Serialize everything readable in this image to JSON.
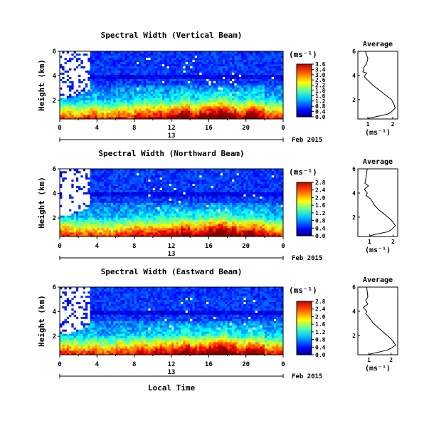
{
  "chart_data": [
    {
      "type": "heatmap",
      "title": "Spectral Width (Vertical Beam)",
      "ylabel": "Height (km)",
      "yticks": [
        "6",
        "4",
        "2"
      ],
      "ylim": [
        0.5,
        6
      ],
      "xticks": [
        "0",
        "4",
        "8",
        "12",
        "16",
        "20",
        "0"
      ],
      "xlim": [
        0,
        24
      ],
      "date_label": "13",
      "month_label": "Feb 2015",
      "colorbar_unit": "(ms⁻¹)",
      "colorbar_ticks": [
        "3.6",
        "3.4",
        "3.0",
        "2.6",
        "2.2",
        "1.8",
        "1.6",
        "1.2",
        "0.8",
        "0.4",
        "0.0"
      ],
      "intensity_profile": [
        0.35,
        0.3,
        0.3,
        0.45,
        0.3,
        0.28,
        0.4,
        0.35,
        0.5,
        0.55,
        0.6,
        0.5,
        0.7,
        0.9,
        0.6,
        0.75,
        0.9,
        1.0,
        0.75,
        0.55,
        0.85,
        0.7,
        0.4,
        0.45
      ],
      "average_profile": {
        "title": "Average",
        "xlabel": "(ms⁻¹)",
        "xticks": [
          "1",
          "2"
        ],
        "yticks": [
          "6",
          "4",
          "2"
        ],
        "xlim": [
          0.6,
          2.2
        ],
        "ylim": [
          0.4,
          6
        ],
        "points": [
          [
            0.9,
            6.0
          ],
          [
            1.0,
            5.4
          ],
          [
            0.95,
            5.0
          ],
          [
            0.85,
            4.7
          ],
          [
            0.8,
            4.3
          ],
          [
            0.95,
            4.2
          ],
          [
            0.85,
            3.9
          ],
          [
            1.0,
            3.6
          ],
          [
            1.2,
            3.2
          ],
          [
            1.45,
            2.8
          ],
          [
            1.7,
            2.4
          ],
          [
            1.95,
            2.0
          ],
          [
            2.05,
            1.6
          ],
          [
            2.1,
            1.3
          ],
          [
            1.95,
            1.0
          ],
          [
            1.8,
            0.8
          ],
          [
            1.35,
            0.6
          ],
          [
            1.0,
            0.45
          ]
        ]
      }
    },
    {
      "type": "heatmap",
      "title": "Spectral Width (Northward Beam)",
      "ylabel": "Height (km)",
      "yticks": [
        "6",
        "4",
        "2"
      ],
      "ylim": [
        0.5,
        6
      ],
      "xticks": [
        "0",
        "4",
        "8",
        "12",
        "16",
        "20",
        "0"
      ],
      "xlim": [
        0,
        24
      ],
      "date_label": "13",
      "month_label": "Feb 2015",
      "colorbar_unit": "(ms⁻¹)",
      "colorbar_ticks": [
        "2.8",
        "2.4",
        "2.0",
        "1.6",
        "1.2",
        "0.8",
        "0.4",
        "0.0"
      ],
      "intensity_profile": [
        0.45,
        0.35,
        0.3,
        0.4,
        0.3,
        0.28,
        0.35,
        0.45,
        0.55,
        0.5,
        0.55,
        0.6,
        0.65,
        0.75,
        0.6,
        0.7,
        0.85,
        1.0,
        0.8,
        0.6,
        0.75,
        0.65,
        0.45,
        0.4
      ],
      "average_profile": {
        "title": "Average",
        "xlabel": "(ms⁻¹)",
        "xticks": [
          "1",
          "2"
        ],
        "yticks": [
          "6",
          "4",
          "2"
        ],
        "xlim": [
          0.5,
          2.2
        ],
        "ylim": [
          0.4,
          6
        ],
        "points": [
          [
            0.9,
            6.0
          ],
          [
            0.85,
            5.3
          ],
          [
            0.8,
            4.8
          ],
          [
            0.95,
            4.6
          ],
          [
            0.78,
            4.3
          ],
          [
            0.9,
            4.0
          ],
          [
            0.85,
            3.8
          ],
          [
            1.05,
            3.5
          ],
          [
            1.2,
            3.0
          ],
          [
            1.4,
            2.6
          ],
          [
            1.6,
            2.3
          ],
          [
            1.85,
            1.9
          ],
          [
            2.0,
            1.6
          ],
          [
            2.1,
            1.3
          ],
          [
            1.95,
            1.0
          ],
          [
            1.8,
            0.8
          ],
          [
            1.3,
            0.6
          ],
          [
            1.0,
            0.45
          ]
        ]
      }
    },
    {
      "type": "heatmap",
      "title": "Spectral Width (Eastward Beam)",
      "ylabel": "Height (km)",
      "yticks": [
        "6",
        "4",
        "2"
      ],
      "ylim": [
        0.5,
        6
      ],
      "xticks": [
        "0",
        "4",
        "8",
        "12",
        "16",
        "20",
        "0"
      ],
      "xlim": [
        0,
        24
      ],
      "date_label": "13",
      "month_label": "Feb 2015",
      "xlabel": "Local Time",
      "colorbar_unit": "(ms⁻¹)",
      "colorbar_ticks": [
        "2.8",
        "2.4",
        "2.0",
        "1.6",
        "1.2",
        "0.8",
        "0.4",
        "0.0"
      ],
      "intensity_profile": [
        0.4,
        0.35,
        0.3,
        0.45,
        0.3,
        0.28,
        0.45,
        0.4,
        0.55,
        0.5,
        0.6,
        0.55,
        0.65,
        0.8,
        0.6,
        0.7,
        0.85,
        1.0,
        0.8,
        0.55,
        0.75,
        0.7,
        0.4,
        0.45
      ],
      "average_profile": {
        "title": "Average",
        "xlabel": "(ms⁻¹)",
        "xticks": [
          "1",
          "2"
        ],
        "yticks": [
          "6",
          "4",
          "2"
        ],
        "xlim": [
          0.5,
          2.3
        ],
        "ylim": [
          0.4,
          6
        ],
        "points": [
          [
            0.9,
            6.0
          ],
          [
            0.95,
            5.2
          ],
          [
            0.85,
            4.9
          ],
          [
            0.95,
            4.6
          ],
          [
            0.75,
            4.3
          ],
          [
            0.9,
            4.0
          ],
          [
            0.85,
            3.8
          ],
          [
            1.0,
            3.5
          ],
          [
            1.2,
            3.0
          ],
          [
            1.45,
            2.6
          ],
          [
            1.7,
            2.2
          ],
          [
            1.95,
            1.8
          ],
          [
            2.1,
            1.5
          ],
          [
            2.2,
            1.2
          ],
          [
            2.05,
            1.0
          ],
          [
            1.85,
            0.8
          ],
          [
            1.4,
            0.6
          ],
          [
            1.0,
            0.45
          ]
        ]
      }
    }
  ]
}
